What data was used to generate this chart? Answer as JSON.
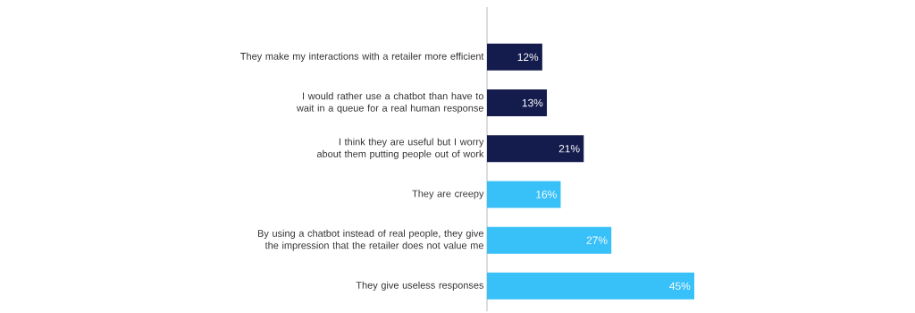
{
  "chart_data": {
    "type": "bar",
    "orientation": "horizontal",
    "categories": [
      "They make my interactions with a retailer more efficient",
      "I would rather use a chatbot than have to wait in a queue for a real human response",
      "I think they are useful but I worry about them putting people out of work",
      "They are creepy",
      "By using a chatbot instead of real people, they give the impression that the retailer does not value me",
      "They give useless responses"
    ],
    "values": [
      12,
      13,
      21,
      16,
      27,
      45
    ],
    "value_labels": [
      "12%",
      "13%",
      "21%",
      "16%",
      "27%",
      "45%"
    ],
    "colors": [
      "#141b4d",
      "#141b4d",
      "#141b4d",
      "#38c0f8",
      "#38c0f8",
      "#38c0f8"
    ],
    "tick_labels": "y"
  }
}
